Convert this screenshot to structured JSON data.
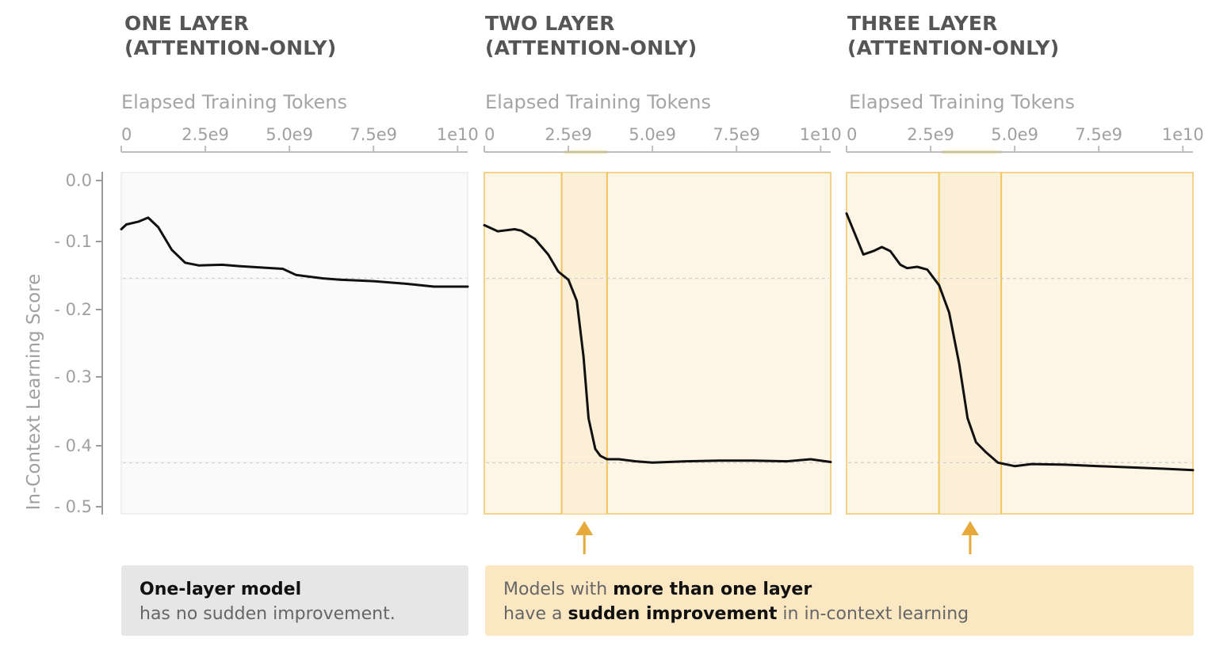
{
  "colors": {
    "highlight_fill": "#fdf5e6",
    "highlight_border": "#f5d28a",
    "highlight_band": "#f0c45a",
    "arrow": "#e6a93a",
    "left_box_bg": "#e6e6e6",
    "right_box_bg": "#fbe7c2",
    "line": "#111111",
    "axis_text": "#a0a0a0"
  },
  "panels": [
    {
      "title_line1": "ONE LAYER",
      "title_line2": "(ATTENTION-ONLY)",
      "x_axis_label": "Elapsed Training Tokens"
    },
    {
      "title_line1": "TWO LAYER",
      "title_line2": "(ATTENTION-ONLY)",
      "x_axis_label": "Elapsed Training Tokens"
    },
    {
      "title_line1": "THREE LAYER",
      "title_line2": "(ATTENTION-ONLY)",
      "x_axis_label": "Elapsed Training Tokens"
    }
  ],
  "chart_data": [
    {
      "type": "line",
      "title": "ONE LAYER (ATTENTION-ONLY)",
      "xlabel": "Elapsed Training Tokens",
      "ylabel": "In-Context Learning Score",
      "xlim": [
        0,
        10300000000
      ],
      "ylim": [
        -0.5,
        0.0
      ],
      "x_ticks": [
        0,
        2500000000,
        5000000000,
        7500000000,
        10000000000
      ],
      "x_tick_labels": [
        "0",
        "2.5e9",
        "5.0e9",
        "7.5e9",
        "1e10"
      ],
      "y_ticks": [
        0.0,
        -0.1,
        -0.2,
        -0.3,
        -0.4,
        -0.5
      ],
      "y_tick_labels": [
        "0.0",
        "- 0.1",
        "- 0.2",
        "- 0.3",
        "- 0.4",
        "- 0.5"
      ],
      "reference_lines": [
        -0.155,
        -0.425
      ],
      "highlight_region": null,
      "series": [
        {
          "x": [
            0,
            150000000.0,
            500000000.0,
            800000000.0,
            1100000000.0,
            1500000000.0,
            1900000000.0,
            2300000000.0,
            3000000000.0,
            3500000000.0,
            4500000000.0,
            4800000000.0,
            5200000000.0,
            6000000000.0,
            6500000000.0,
            7500000000.0,
            8500000000.0,
            9300000000.0,
            10300000000.0
          ],
          "y": [
            -0.083,
            -0.076,
            -0.072,
            -0.066,
            -0.08,
            -0.113,
            -0.132,
            -0.136,
            -0.135,
            -0.137,
            -0.14,
            -0.141,
            -0.15,
            -0.155,
            -0.157,
            -0.159,
            -0.163,
            -0.167,
            -0.167
          ]
        }
      ]
    },
    {
      "type": "line",
      "title": "TWO LAYER (ATTENTION-ONLY)",
      "xlabel": "Elapsed Training Tokens",
      "ylabel": "In-Context Learning Score",
      "xlim": [
        0,
        10300000000
      ],
      "ylim": [
        -0.5,
        0.0
      ],
      "x_ticks": [
        0,
        2500000000,
        5000000000,
        7500000000,
        10000000000
      ],
      "x_tick_labels": [
        "0",
        "2.5e9",
        "5.0e9",
        "7.5e9",
        "1e10"
      ],
      "reference_lines": [
        -0.155,
        -0.425
      ],
      "highlight_region": [
        2300000000,
        3650000000
      ],
      "series": [
        {
          "x": [
            0,
            400000000.0,
            900000000.0,
            1100000000.0,
            1500000000.0,
            1900000000.0,
            2200000000.0,
            2500000000.0,
            2750000000.0,
            2950000000.0,
            3100000000.0,
            3300000000.0,
            3450000000.0,
            3650000000.0,
            4000000000.0,
            4500000000.0,
            5000000000.0,
            6000000000.0,
            7000000000.0,
            8000000000.0,
            9000000000.0,
            9700000000.0,
            10300000000.0
          ],
          "y": [
            -0.077,
            -0.086,
            -0.083,
            -0.085,
            -0.097,
            -0.12,
            -0.145,
            -0.157,
            -0.188,
            -0.27,
            -0.36,
            -0.405,
            -0.415,
            -0.42,
            -0.42,
            -0.423,
            -0.425,
            -0.423,
            -0.422,
            -0.422,
            -0.423,
            -0.42,
            -0.424
          ]
        }
      ]
    },
    {
      "type": "line",
      "title": "THREE LAYER (ATTENTION-ONLY)",
      "xlabel": "Elapsed Training Tokens",
      "ylabel": "In-Context Learning Score",
      "xlim": [
        0,
        10300000000
      ],
      "ylim": [
        -0.5,
        0.0
      ],
      "x_ticks": [
        0,
        2500000000,
        5000000000,
        7500000000,
        10000000000
      ],
      "x_tick_labels": [
        "0",
        "2.5e9",
        "5.0e9",
        "7.5e9",
        "1e10"
      ],
      "reference_lines": [
        -0.155,
        -0.425
      ],
      "highlight_region": [
        2750000000,
        4600000000
      ],
      "series": [
        {
          "x": [
            0,
            250000000.0,
            500000000.0,
            800000000.0,
            1050000000.0,
            1300000000.0,
            1600000000.0,
            1800000000.0,
            2100000000.0,
            2400000000.0,
            2750000000.0,
            3050000000.0,
            3350000000.0,
            3600000000.0,
            3850000000.0,
            4150000000.0,
            4500000000.0,
            5000000000.0,
            5500000000.0,
            6500000000.0,
            7500000000.0,
            8500000000.0,
            9500000000.0,
            10300000000.0
          ],
          "y": [
            -0.06,
            -0.09,
            -0.12,
            -0.115,
            -0.109,
            -0.115,
            -0.135,
            -0.14,
            -0.138,
            -0.142,
            -0.165,
            -0.205,
            -0.28,
            -0.36,
            -0.395,
            -0.41,
            -0.425,
            -0.43,
            -0.427,
            -0.428,
            -0.43,
            -0.432,
            -0.434,
            -0.436
          ]
        }
      ]
    }
  ],
  "callouts": {
    "left": {
      "bold": "One-layer model",
      "text": "has no sudden improvement."
    },
    "right": {
      "line1_prefix": "Models with ",
      "line1_bold": "more than one layer",
      "line2_prefix": "have a ",
      "line2_bold": "sudden improvement",
      "line2_suffix": " in in-context learning"
    }
  }
}
